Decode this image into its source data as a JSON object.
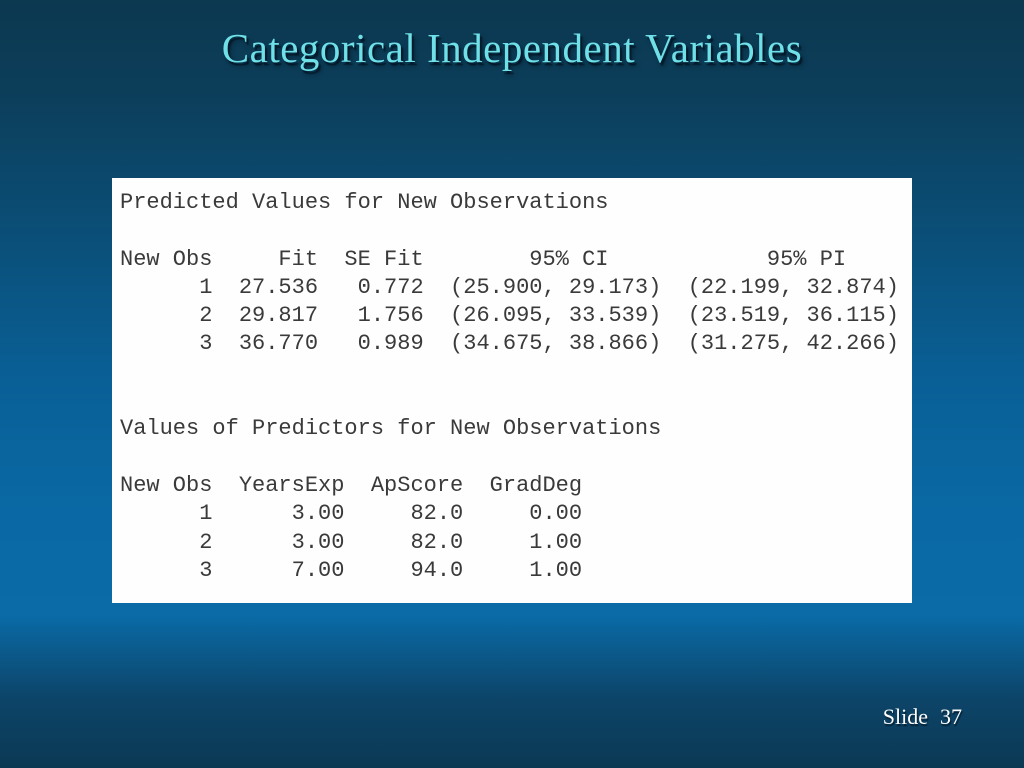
{
  "slide": {
    "title": "Categorical Independent Variables",
    "footer": {
      "label": "Slide",
      "number": "37"
    }
  },
  "colors": {
    "background_top": "#0c3850",
    "background_bright": "#0a6ba7",
    "background_bottom": "#0b3954",
    "title_text": "#6fe0e8",
    "output_text": "#3a3a3a",
    "output_panel": "#ffffff",
    "footer_text": "#ffffff"
  },
  "minitab_output": {
    "predicted_values": {
      "heading": "Predicted Values for New Observations",
      "columns": [
        "New Obs",
        "Fit",
        "SE Fit",
        "95% CI",
        "95% PI"
      ],
      "rows": [
        [
          "1",
          "27.536",
          "0.772",
          "(25.900, 29.173)",
          "(22.199, 32.874)"
        ],
        [
          "2",
          "29.817",
          "1.756",
          "(26.095, 33.539)",
          "(23.519, 36.115)"
        ],
        [
          "3",
          "36.770",
          "0.989",
          "(34.675, 38.866)",
          "(31.275, 42.266)"
        ]
      ]
    },
    "predictor_values": {
      "heading": "Values of Predictors for New Observations",
      "columns": [
        "New Obs",
        "YearsExp",
        "ApScore",
        "GradDeg"
      ],
      "rows": [
        [
          "1",
          "3.00",
          "82.0",
          "0.00"
        ],
        [
          "2",
          "3.00",
          "82.0",
          "1.00"
        ],
        [
          "3",
          "7.00",
          "94.0",
          "1.00"
        ]
      ]
    },
    "lines": [
      "Predicted Values for New Observations",
      "",
      "New Obs     Fit  SE Fit        95% CI            95% PI",
      "      1  27.536   0.772  (25.900, 29.173)  (22.199, 32.874)",
      "      2  29.817   1.756  (26.095, 33.539)  (23.519, 36.115)",
      "      3  36.770   0.989  (34.675, 38.866)  (31.275, 42.266)",
      "",
      "",
      "Values of Predictors for New Observations",
      "",
      "New Obs  YearsExp  ApScore  GradDeg",
      "      1      3.00     82.0     0.00",
      "      2      3.00     82.0     1.00",
      "      3      7.00     94.0     1.00"
    ]
  }
}
